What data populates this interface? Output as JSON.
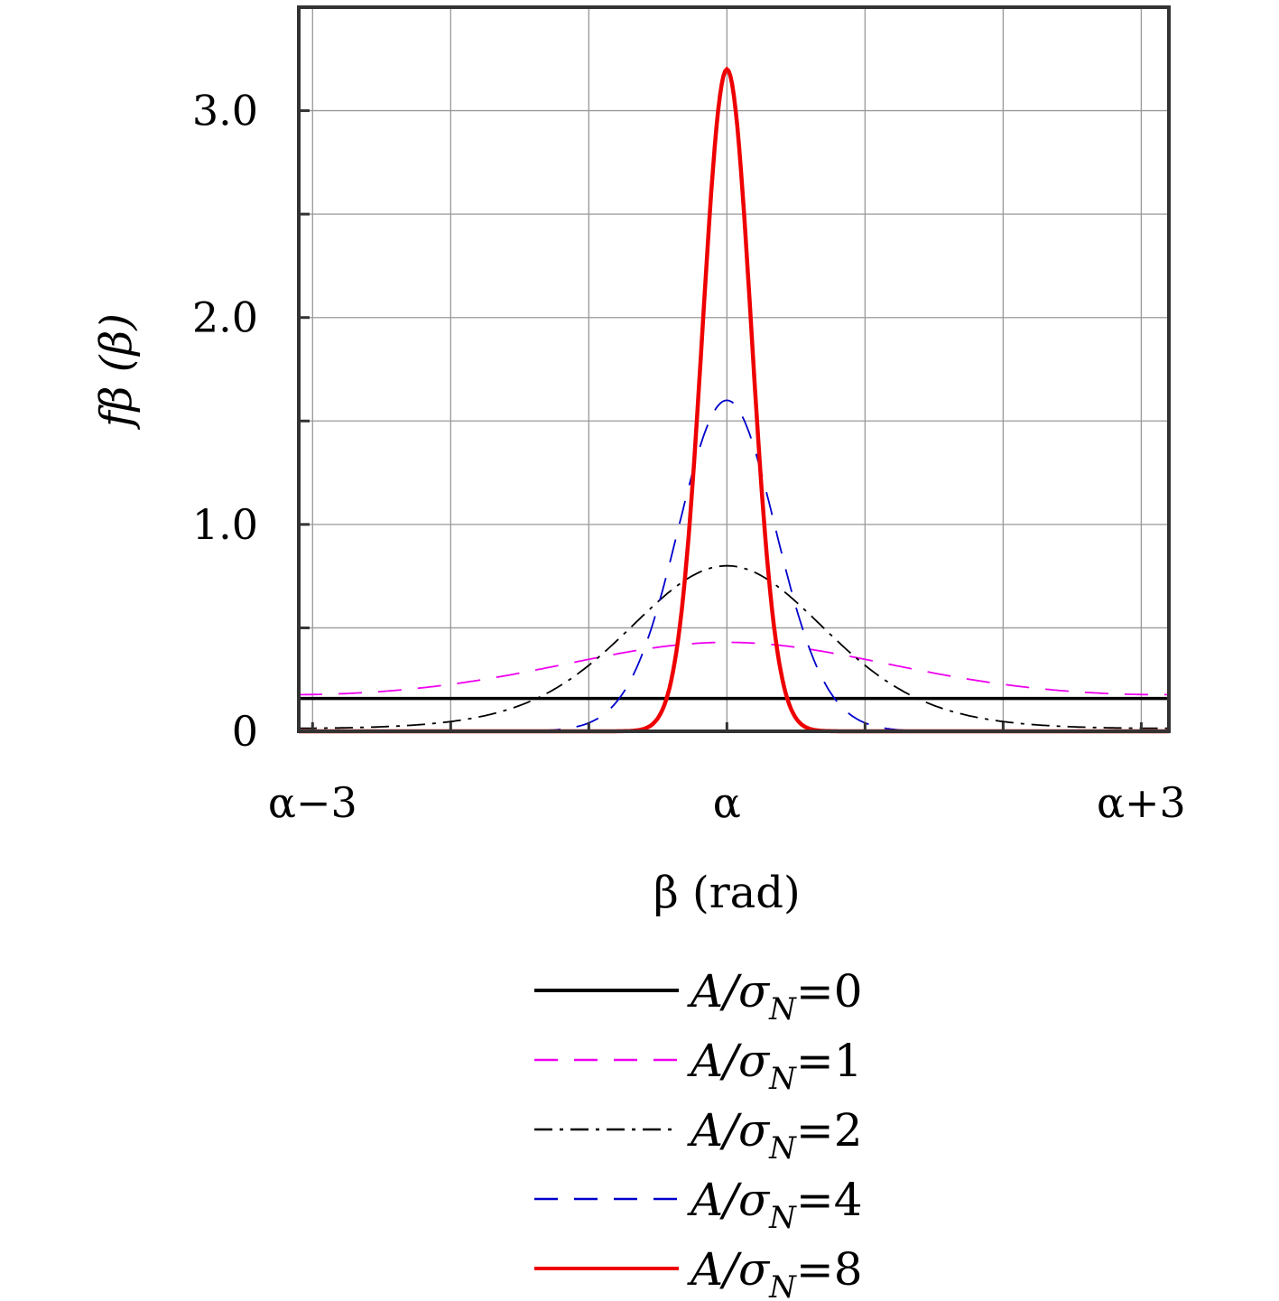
{
  "chart_data": {
    "type": "line",
    "xlabel": "β (rad)",
    "ylabel": "fβ (β)",
    "xlim": [
      -3.1,
      3.2
    ],
    "ylim": [
      0,
      3.5
    ],
    "x_ticks": [
      {
        "value": -3,
        "label": "α−3"
      },
      {
        "value": 0,
        "label": "α"
      },
      {
        "value": 3,
        "label": "α+3"
      }
    ],
    "y_ticks": [
      {
        "value": 0,
        "label": "0"
      },
      {
        "value": 1,
        "label": "1.0"
      },
      {
        "value": 2,
        "label": "2.0"
      },
      {
        "value": 3,
        "label": "3.0"
      }
    ],
    "grid": true,
    "legend_position": "bottom-center",
    "series": [
      {
        "name": "A/σN=0",
        "legend_base": "A/σ",
        "legend_sub": "N",
        "legend_suffix": "=0",
        "amplitude": 0,
        "color": "#000000",
        "style": "solid",
        "x": [
          -3.1,
          -2,
          -1,
          0,
          1,
          2,
          3.2
        ],
        "y": [
          0.159,
          0.159,
          0.159,
          0.159,
          0.159,
          0.159,
          0.159
        ]
      },
      {
        "name": "A/σN=1",
        "legend_base": "A/σ",
        "legend_sub": "N",
        "legend_suffix": "=1",
        "amplitude": 1,
        "color": "#ee00ee",
        "style": "dashed",
        "x": [
          -3.1,
          -2,
          -1,
          0,
          1,
          2,
          3.2
        ],
        "y": [
          0.03,
          0.08,
          0.25,
          0.43,
          0.25,
          0.08,
          0.03
        ]
      },
      {
        "name": "A/σN=2",
        "legend_base": "A/σ",
        "legend_sub": "N",
        "legend_suffix": "=2",
        "amplitude": 2,
        "color": "#000000",
        "style": "dashdot",
        "x": [
          -3.1,
          -2,
          -1,
          0,
          1,
          2,
          3.2
        ],
        "y": [
          0.0,
          0.02,
          0.3,
          0.8,
          0.3,
          0.02,
          0.0
        ]
      },
      {
        "name": "A/σN=4",
        "legend_base": "A/σ",
        "legend_sub": "N",
        "legend_suffix": "=4",
        "amplitude": 4,
        "color": "#0000cc",
        "style": "dashed",
        "x": [
          -3.1,
          -2,
          -1,
          0,
          1,
          2,
          3.2
        ],
        "y": [
          0.0,
          0.0,
          0.01,
          1.6,
          0.01,
          0.0,
          0.0
        ]
      },
      {
        "name": "A/σN=8",
        "legend_base": "A/σ",
        "legend_sub": "N",
        "legend_suffix": "=8",
        "amplitude": 8,
        "color": "#ee0000",
        "style": "solid",
        "x": [
          -3.1,
          -2,
          -1,
          0,
          1,
          2,
          3.2
        ],
        "y": [
          0.0,
          0.0,
          0.0,
          3.2,
          0.0,
          0.0,
          0.0
        ]
      }
    ]
  }
}
